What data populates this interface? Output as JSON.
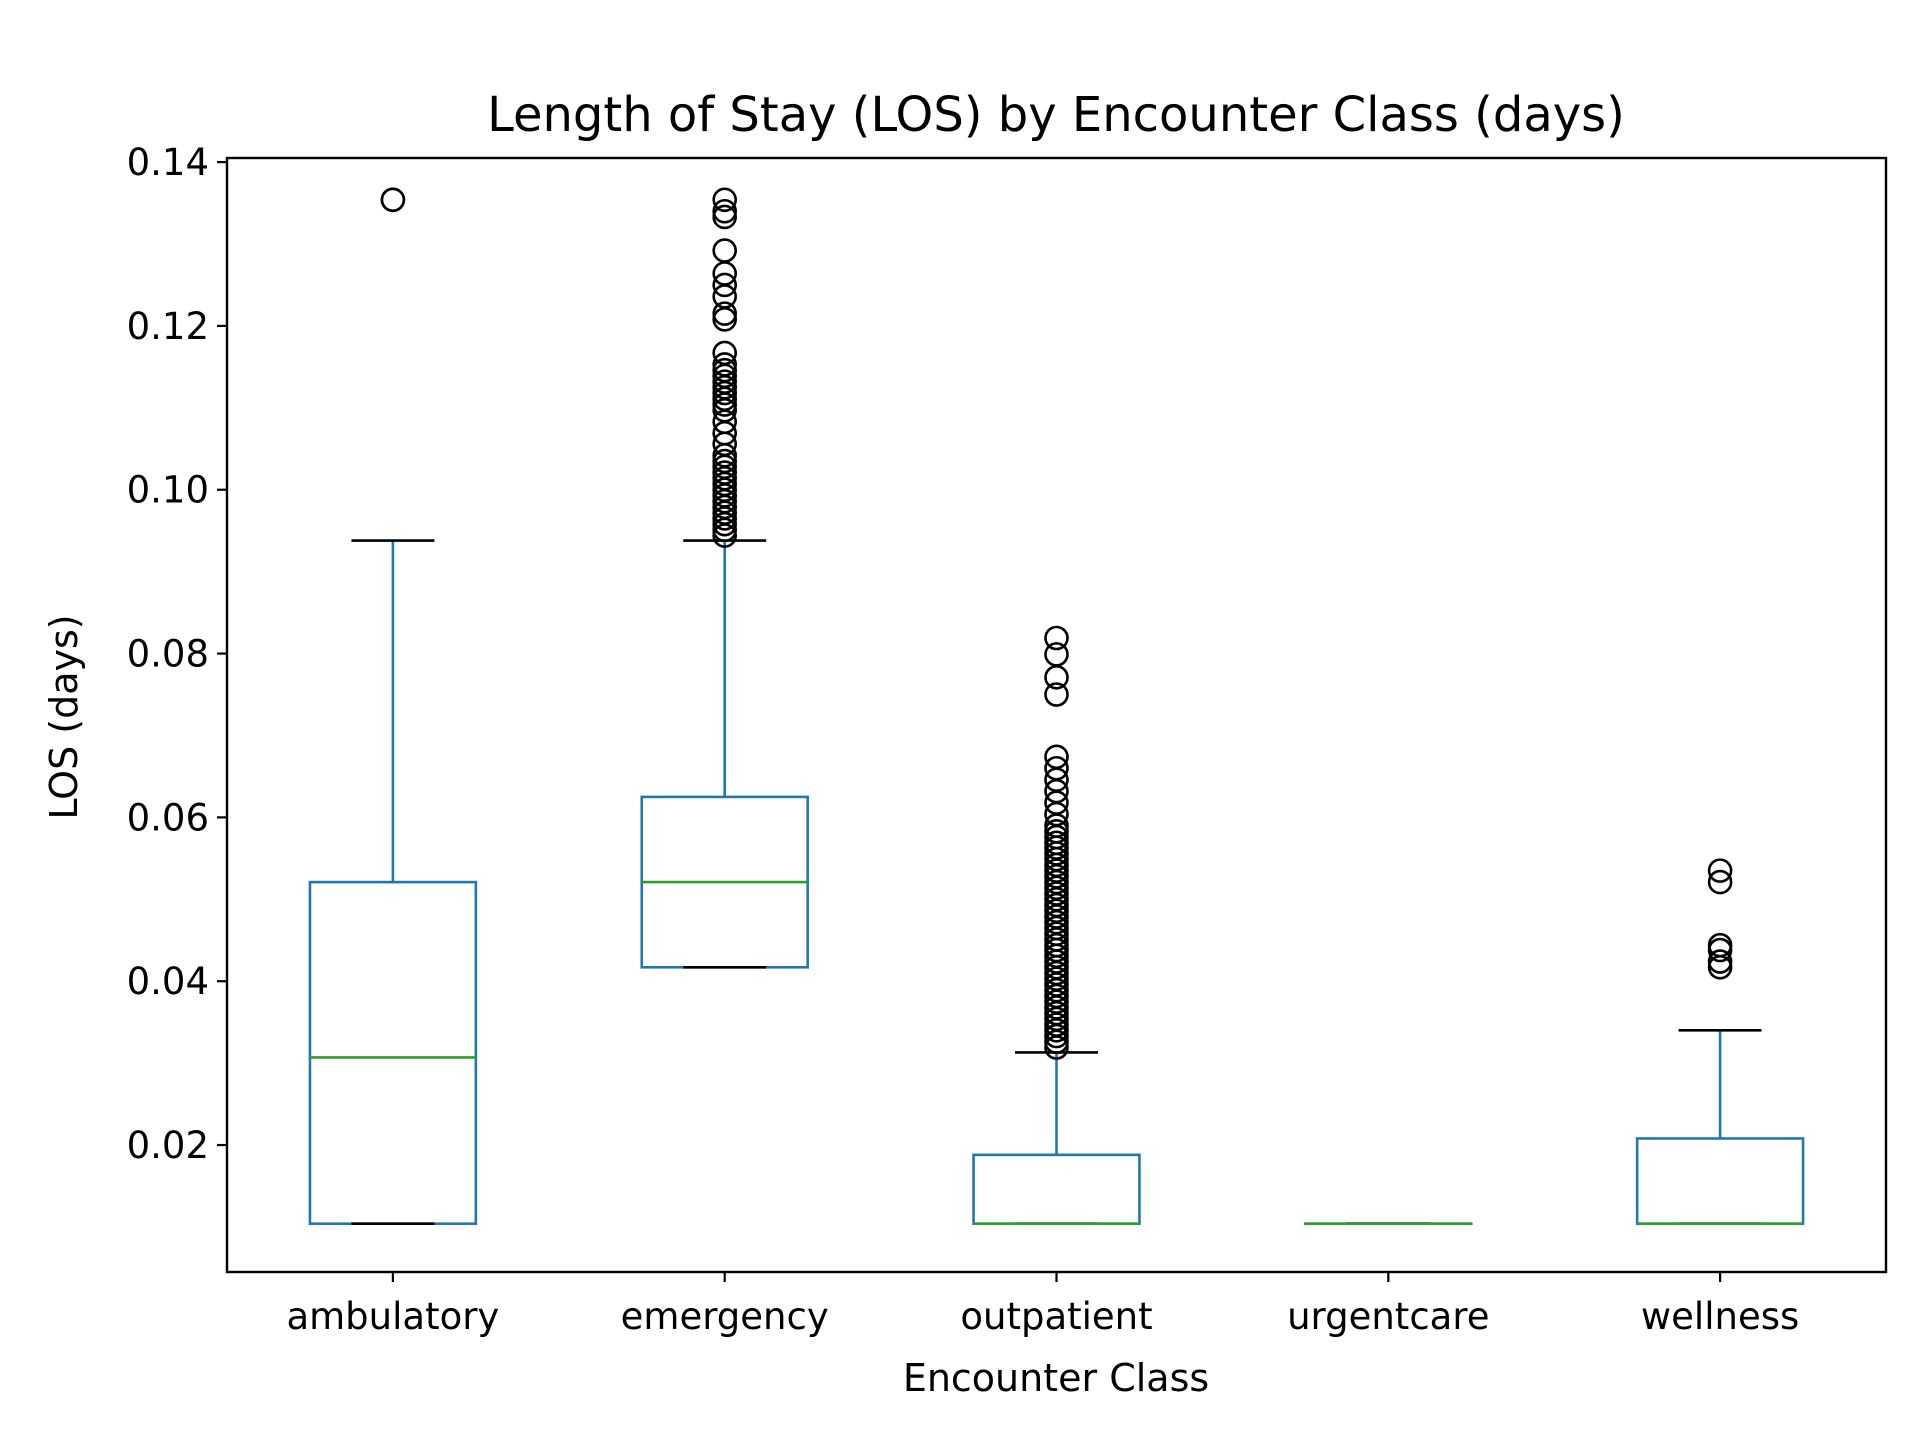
{
  "chart_data": {
    "type": "box",
    "title": "Length of Stay (LOS) by Encounter Class (days)",
    "xlabel": "Encounter Class",
    "ylabel": "LOS (days)",
    "ylim": [
      0.0045,
      0.1405
    ],
    "yticks": [
      0.02,
      0.04,
      0.06,
      0.08,
      0.1,
      0.12,
      0.14
    ],
    "ytick_labels": [
      "0.02",
      "0.04",
      "0.06",
      "0.08",
      "0.10",
      "0.12",
      "0.14"
    ],
    "grid": false,
    "colors": {
      "box": "#1f77b4",
      "median": "#2ca02c",
      "whisker_cap": "#000000",
      "flier": "#000000"
    },
    "categories": [
      "ambulatory",
      "emergency",
      "outpatient",
      "urgentcare",
      "wellness"
    ],
    "boxes": [
      {
        "name": "ambulatory",
        "whislo": 0.0104,
        "q1": 0.0104,
        "med": 0.0307,
        "q3": 0.0521,
        "whishi": 0.0938,
        "fliers": [
          0.1354,
          0.1354
        ]
      },
      {
        "name": "emergency",
        "whislo": 0.0417,
        "q1": 0.0417,
        "med": 0.0521,
        "q3": 0.0625,
        "whishi": 0.0938,
        "fliers": [
          0.0944,
          0.0951,
          0.0958,
          0.0965,
          0.0972,
          0.0979,
          0.0986,
          0.0993,
          0.1,
          0.1007,
          0.1014,
          0.1021,
          0.1028,
          0.1035,
          0.1042,
          0.1056,
          0.1069,
          0.1083,
          0.1097,
          0.1104,
          0.1111,
          0.1118,
          0.1125,
          0.1132,
          0.1139,
          0.1146,
          0.1153,
          0.1167,
          0.1208,
          0.1215,
          0.1236,
          0.125,
          0.1264,
          0.1292,
          0.1333,
          0.134,
          0.1354
        ]
      },
      {
        "name": "outpatient",
        "whislo": 0.0104,
        "q1": 0.0104,
        "med": 0.0104,
        "q3": 0.0188,
        "whishi": 0.0313,
        "fliers": [
          0.0319,
          0.0326,
          0.0333,
          0.034,
          0.0347,
          0.0354,
          0.0361,
          0.0368,
          0.0375,
          0.0382,
          0.0389,
          0.0396,
          0.0403,
          0.041,
          0.0417,
          0.0424,
          0.0431,
          0.0438,
          0.0444,
          0.0451,
          0.0458,
          0.0465,
          0.0472,
          0.0479,
          0.0486,
          0.0493,
          0.05,
          0.0507,
          0.0514,
          0.0521,
          0.0528,
          0.0535,
          0.0542,
          0.0549,
          0.0556,
          0.0563,
          0.0569,
          0.0576,
          0.0583,
          0.059,
          0.0604,
          0.0618,
          0.0632,
          0.0646,
          0.066,
          0.0674,
          0.075,
          0.0771,
          0.0799,
          0.0819
        ]
      },
      {
        "name": "urgentcare",
        "whislo": 0.0104,
        "q1": 0.0104,
        "med": 0.0104,
        "q3": 0.0104,
        "whishi": 0.0104,
        "fliers": []
      },
      {
        "name": "wellness",
        "whislo": 0.0104,
        "q1": 0.0104,
        "med": 0.0104,
        "q3": 0.0208,
        "whishi": 0.034,
        "fliers": [
          0.0417,
          0.0424,
          0.0438,
          0.0444,
          0.0521,
          0.0535
        ]
      }
    ]
  }
}
